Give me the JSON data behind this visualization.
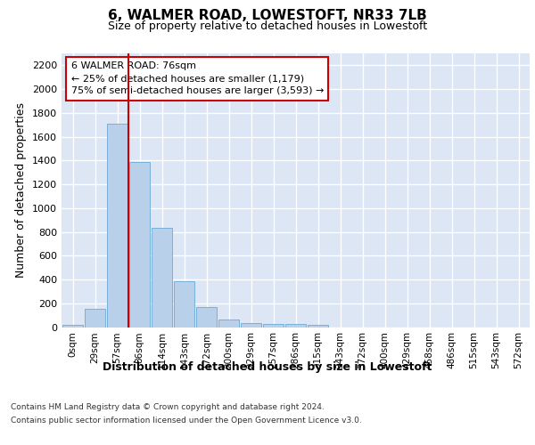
{
  "title": "6, WALMER ROAD, LOWESTOFT, NR33 7LB",
  "subtitle": "Size of property relative to detached houses in Lowestoft",
  "xlabel": "Distribution of detached houses by size in Lowestoft",
  "ylabel": "Number of detached properties",
  "bar_values": [
    20,
    155,
    1710,
    1390,
    835,
    385,
    165,
    65,
    35,
    28,
    28,
    18,
    0,
    0,
    0,
    0,
    0,
    0,
    0,
    0,
    0
  ],
  "bar_labels": [
    "0sqm",
    "29sqm",
    "57sqm",
    "86sqm",
    "114sqm",
    "143sqm",
    "172sqm",
    "200sqm",
    "229sqm",
    "257sqm",
    "286sqm",
    "315sqm",
    "343sqm",
    "372sqm",
    "400sqm",
    "429sqm",
    "458sqm",
    "486sqm",
    "515sqm",
    "543sqm",
    "572sqm"
  ],
  "bar_color": "#b8d0ea",
  "bar_edgecolor": "#6aaad4",
  "bg_color": "#dce6f5",
  "grid_color": "#ffffff",
  "vline_color": "#cc0000",
  "vline_x": 2.5,
  "annotation_line1": "6 WALMER ROAD: 76sqm",
  "annotation_line2": "← 25% of detached houses are smaller (1,179)",
  "annotation_line3": "75% of semi-detached houses are larger (3,593) →",
  "annotation_box_facecolor": "#ffffff",
  "annotation_box_edgecolor": "#cc0000",
  "ylim": [
    0,
    2300
  ],
  "yticks": [
    0,
    200,
    400,
    600,
    800,
    1000,
    1200,
    1400,
    1600,
    1800,
    2000,
    2200
  ],
  "footer_line1": "Contains HM Land Registry data © Crown copyright and database right 2024.",
  "footer_line2": "Contains public sector information licensed under the Open Government Licence v3.0."
}
